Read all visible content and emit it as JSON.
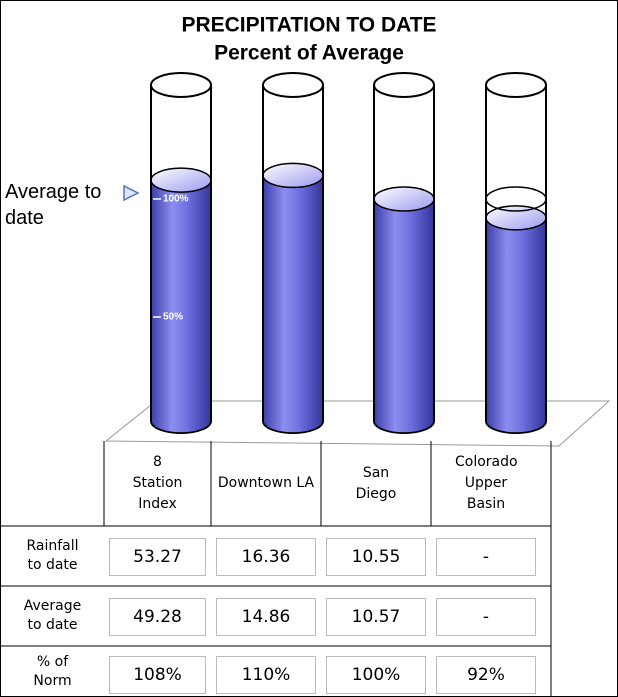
{
  "chart_data": {
    "type": "cylinder",
    "title": "PRECIPITATION TO DATE",
    "subtitle": "Percent of Average",
    "annotation": "Average to date",
    "categories": [
      "8 Station Index",
      "Downtown LA",
      "San Diego",
      "Colorado Upper Basin"
    ],
    "values": [
      108,
      110,
      100,
      92
    ],
    "value_labels": [
      "108%",
      "110%",
      "100%",
      "92%"
    ],
    "color": "#6a6ae0",
    "ylim": [
      0,
      150
    ],
    "yticks": [
      {
        "value": 50,
        "label": "50%"
      },
      {
        "value": 100,
        "label": "100%"
      }
    ],
    "table": {
      "rows": [
        {
          "label": "Rainfall to date",
          "values": [
            53.27,
            16.36,
            10.55,
            "-"
          ]
        },
        {
          "label": "Average to date",
          "values": [
            49.28,
            14.86,
            10.57,
            "-"
          ]
        }
      ],
      "value_label_row": "% of Norm"
    }
  }
}
